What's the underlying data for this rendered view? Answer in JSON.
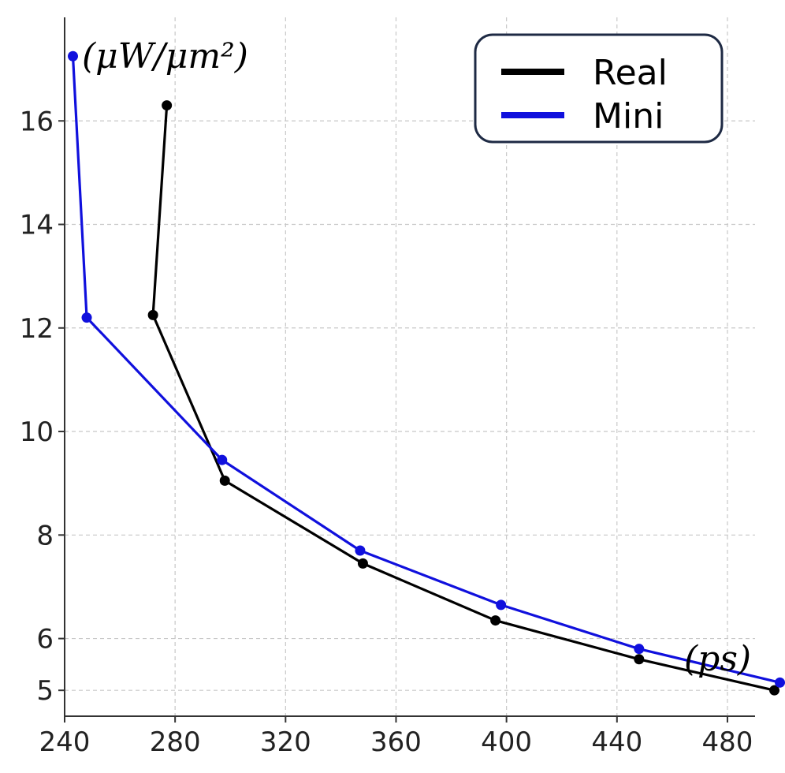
{
  "chart_data": {
    "type": "line",
    "title": "",
    "xlabel": "(ps)",
    "ylabel": "(μW/μm²)",
    "xlim": [
      240,
      490
    ],
    "ylim": [
      4.5,
      18.0
    ],
    "x_ticks": [
      240,
      280,
      320,
      360,
      400,
      440,
      480
    ],
    "y_ticks": [
      5,
      6,
      8,
      10,
      12,
      14,
      16
    ],
    "grid": true,
    "legend_position": "top-right",
    "series": [
      {
        "name": "Real",
        "color": "#000000",
        "points": [
          {
            "x": 277,
            "y": 16.3
          },
          {
            "x": 272,
            "y": 12.25
          },
          {
            "x": 298,
            "y": 9.05
          },
          {
            "x": 348,
            "y": 7.45
          },
          {
            "x": 396,
            "y": 6.35
          },
          {
            "x": 448,
            "y": 5.6
          },
          {
            "x": 497,
            "y": 5.0
          }
        ]
      },
      {
        "name": "Mini",
        "color": "#1010dd",
        "points": [
          {
            "x": 243,
            "y": 17.25
          },
          {
            "x": 248,
            "y": 12.2
          },
          {
            "x": 297,
            "y": 9.45
          },
          {
            "x": 347,
            "y": 7.7
          },
          {
            "x": 398,
            "y": 6.65
          },
          {
            "x": 448,
            "y": 5.8
          },
          {
            "x": 499,
            "y": 5.15
          }
        ]
      }
    ]
  }
}
